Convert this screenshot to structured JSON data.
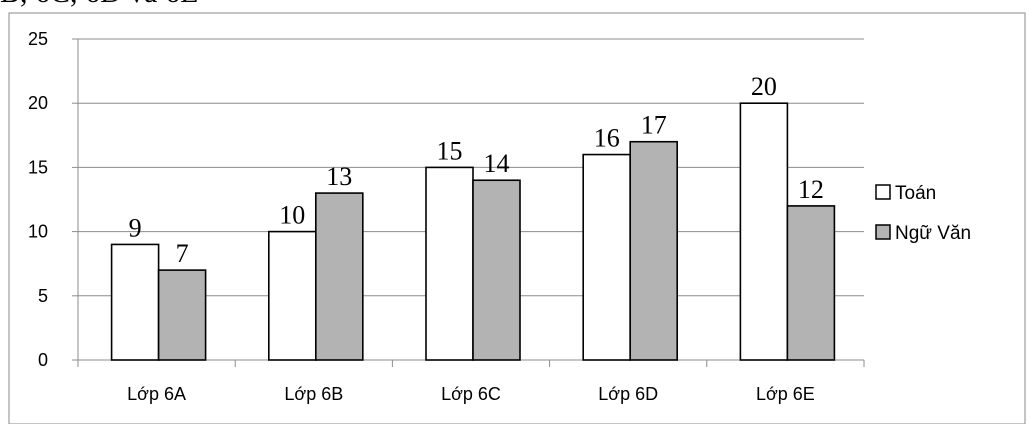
{
  "header_fragment": "B, 6C, 6D và 6E",
  "chart_data": {
    "type": "bar",
    "categories": [
      "Lớp 6A",
      "Lớp 6B",
      "Lớp 6C",
      "Lớp 6D",
      "Lớp 6E"
    ],
    "series": [
      {
        "name": "Toán",
        "values": [
          9,
          10,
          15,
          16,
          20
        ],
        "color": "#ffffff"
      },
      {
        "name": "Ngữ Văn",
        "values": [
          7,
          13,
          14,
          17,
          12
        ],
        "color": "#b3b3b3"
      }
    ],
    "y_ticks": [
      "0",
      "5",
      "10",
      "15",
      "20",
      "25"
    ],
    "ylim": [
      0,
      25
    ],
    "title": "",
    "xlabel": "",
    "ylabel": "",
    "grid": true,
    "legend_position": "right"
  }
}
